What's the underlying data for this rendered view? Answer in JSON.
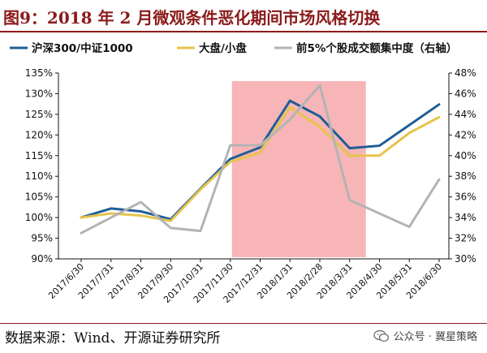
{
  "header": {
    "title": "图9：2018 年 2 月微观条件恶化期间市场风格切换"
  },
  "footer": {
    "source": "数据来源：Wind、开源证券研究所",
    "watermark": "公众号 · 冀星策略"
  },
  "chart_data": {
    "type": "line",
    "x": [
      "2017/6/30",
      "2017/7/31",
      "2017/8/31",
      "2017/9/30",
      "2017/10/31",
      "2017/11/30",
      "2017/12/31",
      "2018/1/31",
      "2018/2/28",
      "2018/3/31",
      "2018/4/30",
      "2018/5/31",
      "2018/6/30"
    ],
    "series": [
      {
        "name": "沪深300/中证1000",
        "axis": "left",
        "color": "#1f5e96",
        "values": [
          100.0,
          102.2,
          101.5,
          99.6,
          107.0,
          114.2,
          117.0,
          128.3,
          124.5,
          116.8,
          117.4,
          122.4,
          127.4
        ]
      },
      {
        "name": "大盘/小盘",
        "axis": "left",
        "color": "#e6c34b",
        "values": [
          100.0,
          101.0,
          100.5,
          99.2,
          106.8,
          113.5,
          115.7,
          126.7,
          122.0,
          115.0,
          115.0,
          120.5,
          124.3
        ]
      },
      {
        "name": "前5%个股成交额集中度（右轴）",
        "axis": "right",
        "color": "#b3b3b3",
        "x": [
          "2017/6/30",
          "2017/8/31",
          "2017/9/30",
          "2017/10/31",
          "2017/11/30",
          "2017/12/31",
          "2018/1/31",
          "2018/2/28",
          "2018/3/31",
          "2018/5/31",
          "2018/6/30"
        ],
        "values": [
          32.5,
          35.5,
          33.0,
          32.7,
          41.0,
          41.0,
          43.5,
          46.8,
          35.7,
          33.1,
          37.7
        ]
      }
    ],
    "left_axis": {
      "ylim": [
        90,
        135
      ],
      "ticks": [
        "90%",
        "95%",
        "100%",
        "105%",
        "110%",
        "115%",
        "120%",
        "125%",
        "130%",
        "135%"
      ]
    },
    "right_axis": {
      "ylim": [
        30,
        48
      ],
      "ticks": [
        "30%",
        "32%",
        "34%",
        "36%",
        "38%",
        "40%",
        "42%",
        "44%",
        "46%",
        "48%"
      ]
    },
    "highlight": {
      "from": "2017/11/30",
      "to": "2018/3/31",
      "color": "#f6a8aa"
    },
    "legend_position": "top",
    "grid": false
  }
}
